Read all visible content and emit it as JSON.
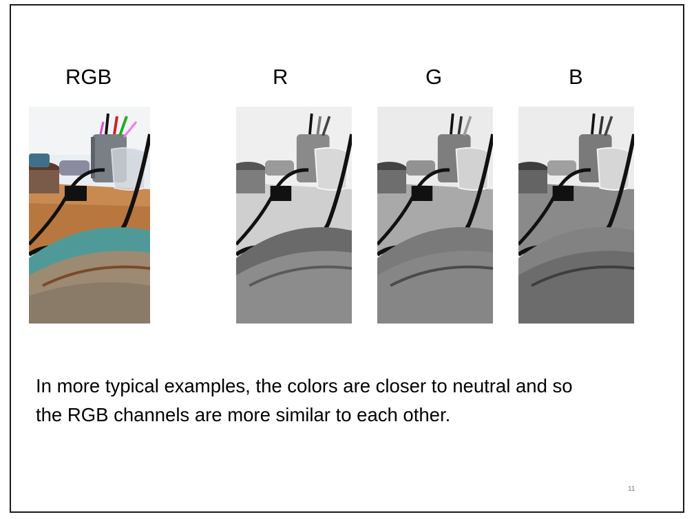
{
  "slide": {
    "labels": {
      "rgb": "RGB",
      "r": "R",
      "g": "G",
      "b": "B"
    },
    "caption_line1": "In more typical examples,  the colors are closer to neutral and so",
    "caption_line2": "the RGB channels are more similar to each other.",
    "page_number": "11"
  },
  "colors": {
    "border": "#1a1a1a",
    "text": "#000000",
    "page_number": "#777777"
  }
}
